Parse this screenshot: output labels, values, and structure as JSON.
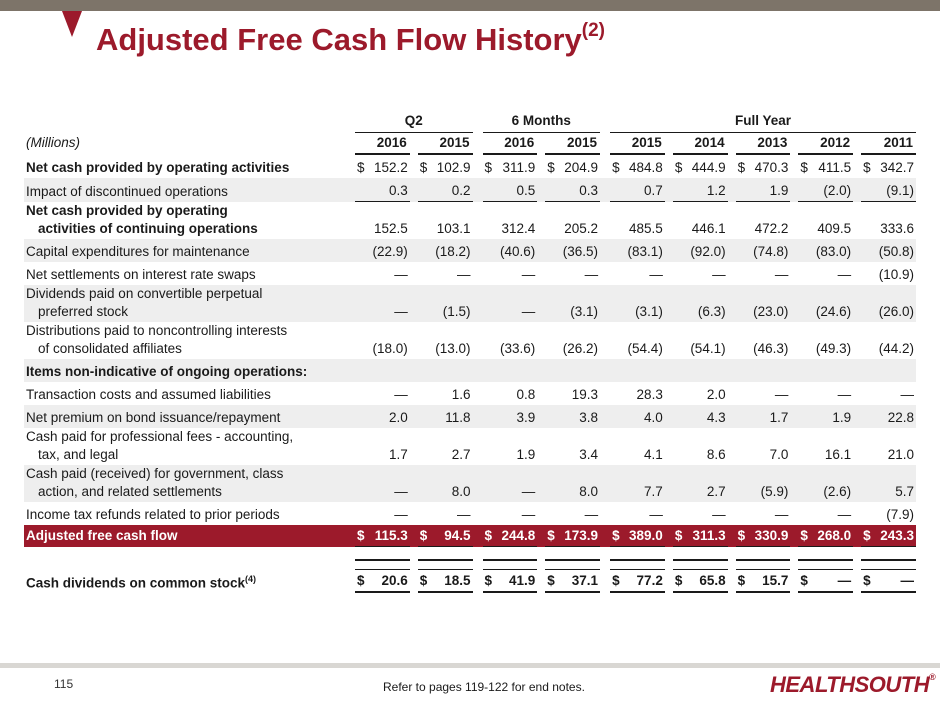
{
  "title": "Adjusted Free Cash Flow History",
  "title_note": "(2)",
  "header": {
    "groups": [
      "Q2",
      "6 Months",
      "Full Year"
    ],
    "units_label": "(Millions)",
    "years": [
      "2016",
      "2015",
      "2016",
      "2015",
      "2015",
      "2014",
      "2013",
      "2012",
      "2011"
    ]
  },
  "rows": [
    {
      "l1": "Net cash provided by operating activities",
      "l2": "",
      "d": [
        "$",
        "$",
        "$",
        "$",
        "$",
        "$",
        "$",
        "$",
        "$"
      ],
      "v": [
        "152.2",
        "102.9",
        "311.9",
        "204.9",
        "484.8",
        "444.9",
        "470.3",
        "411.5",
        "342.7"
      ]
    },
    {
      "l1": "Impact of discontinued operations",
      "l2": "",
      "d": [
        "",
        "",
        "",
        "",
        "",
        "",
        "",
        "",
        ""
      ],
      "v": [
        "0.3",
        "0.2",
        "0.5",
        "0.3",
        "0.7",
        "1.2",
        "1.9",
        "(2.0)",
        "(9.1)"
      ]
    },
    {
      "l1": "Net cash provided by operating",
      "l2": "activities of continuing operations",
      "d": [
        "",
        "",
        "",
        "",
        "",
        "",
        "",
        "",
        ""
      ],
      "v": [
        "152.5",
        "103.1",
        "312.4",
        "205.2",
        "485.5",
        "446.1",
        "472.2",
        "409.5",
        "333.6"
      ]
    },
    {
      "l1": "Capital expenditures for maintenance",
      "l2": "",
      "d": [
        "",
        "",
        "",
        "",
        "",
        "",
        "",
        "",
        ""
      ],
      "v": [
        "(22.9)",
        "(18.2)",
        "(40.6)",
        "(36.5)",
        "(83.1)",
        "(92.0)",
        "(74.8)",
        "(83.0)",
        "(50.8)"
      ]
    },
    {
      "l1": "Net settlements on interest rate swaps",
      "l2": "",
      "d": [
        "",
        "",
        "",
        "",
        "",
        "",
        "",
        "",
        ""
      ],
      "v": [
        "—",
        "—",
        "—",
        "—",
        "—",
        "—",
        "—",
        "—",
        "(10.9)"
      ]
    },
    {
      "l1": "Dividends paid on convertible perpetual",
      "l2": "preferred stock",
      "d": [
        "",
        "",
        "",
        "",
        "",
        "",
        "",
        "",
        ""
      ],
      "v": [
        "—",
        "(1.5)",
        "—",
        "(3.1)",
        "(3.1)",
        "(6.3)",
        "(23.0)",
        "(24.6)",
        "(26.0)"
      ]
    },
    {
      "l1": "Distributions paid to noncontrolling interests",
      "l2": "of consolidated affiliates",
      "d": [
        "",
        "",
        "",
        "",
        "",
        "",
        "",
        "",
        ""
      ],
      "v": [
        "(18.0)",
        "(13.0)",
        "(33.6)",
        "(26.2)",
        "(54.4)",
        "(54.1)",
        "(46.3)",
        "(49.3)",
        "(44.2)"
      ]
    },
    {
      "l1": "Items non-indicative of ongoing operations:",
      "l2": "",
      "d": [
        "",
        "",
        "",
        "",
        "",
        "",
        "",
        "",
        ""
      ],
      "v": [
        "",
        "",
        "",
        "",
        "",
        "",
        "",
        "",
        ""
      ]
    },
    {
      "l1": "Transaction costs and assumed liabilities",
      "l2": "",
      "d": [
        "",
        "",
        "",
        "",
        "",
        "",
        "",
        "",
        ""
      ],
      "v": [
        "—",
        "1.6",
        "0.8",
        "19.3",
        "28.3",
        "2.0",
        "—",
        "—",
        "—"
      ]
    },
    {
      "l1": "Net premium on bond issuance/repayment",
      "l2": "",
      "d": [
        "",
        "",
        "",
        "",
        "",
        "",
        "",
        "",
        ""
      ],
      "v": [
        "2.0",
        "11.8",
        "3.9",
        "3.8",
        "4.0",
        "4.3",
        "1.7",
        "1.9",
        "22.8"
      ]
    },
    {
      "l1": "Cash paid for professional fees - accounting,",
      "l2": "tax, and legal",
      "d": [
        "",
        "",
        "",
        "",
        "",
        "",
        "",
        "",
        ""
      ],
      "v": [
        "1.7",
        "2.7",
        "1.9",
        "3.4",
        "4.1",
        "8.6",
        "7.0",
        "16.1",
        "21.0"
      ]
    },
    {
      "l1": "Cash paid (received) for government, class",
      "l2": "action, and related settlements",
      "d": [
        "",
        "",
        "",
        "",
        "",
        "",
        "",
        "",
        ""
      ],
      "v": [
        "—",
        "8.0",
        "—",
        "8.0",
        "7.7",
        "2.7",
        "(5.9)",
        "(2.6)",
        "5.7"
      ]
    },
    {
      "l1": "Income tax refunds related to prior periods",
      "l2": "",
      "d": [
        "",
        "",
        "",
        "",
        "",
        "",
        "",
        "",
        ""
      ],
      "v": [
        "—",
        "—",
        "—",
        "—",
        "—",
        "—",
        "—",
        "—",
        "(7.9)"
      ]
    }
  ],
  "afcf": {
    "label": "Adjusted free cash flow",
    "d": [
      "$",
      "$",
      "$",
      "$",
      "$",
      "$",
      "$",
      "$",
      "$"
    ],
    "v": [
      "115.3",
      "94.5",
      "244.8",
      "173.9",
      "389.0",
      "311.3",
      "330.9",
      "268.0",
      "243.3"
    ]
  },
  "dividends": {
    "label": "Cash dividends on common stock",
    "note": "(4)",
    "d": [
      "$",
      "$",
      "$",
      "$",
      "$",
      "$",
      "$",
      "$",
      "$"
    ],
    "v": [
      "20.6",
      "18.5",
      "41.9",
      "37.1",
      "77.2",
      "65.8",
      "15.7",
      "—",
      "—"
    ]
  },
  "footer": {
    "page": "115",
    "endnote": "Refer to pages 119-122 for end notes.",
    "logo": "HEALTHSOUTH",
    "logo_mark": "®"
  },
  "colors": {
    "brand": "#9c1a2b",
    "topbar": "#7d7469",
    "row_shade": "#eeeeee"
  }
}
